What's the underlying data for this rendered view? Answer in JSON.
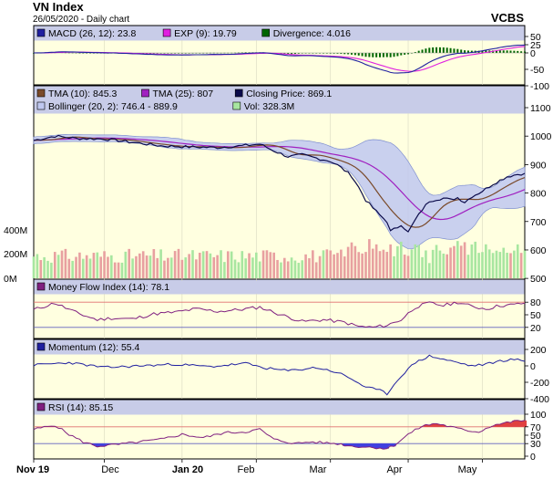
{
  "header": {
    "title": "VN Index",
    "subtitle": "26/05/2020 - Daily chart",
    "source": "VCBS"
  },
  "colors": {
    "panel_bg": "#ffffe0",
    "legend_bg": "#c8cce8",
    "band_fill": "#c0c8f0",
    "macd": "#2020a0",
    "exp": "#e020e0",
    "divergence": "#006600",
    "tma10": "#7a4a2a",
    "tma25": "#a020c0",
    "close": "#0a0a4a",
    "vol_up": "#a8e6a0",
    "vol_down": "#e8a0a0",
    "mfi": "#802080",
    "momentum": "#2020a0",
    "rsi_line": "#802080",
    "rsi_over": "#e04040",
    "rsi_under": "#4040e0",
    "ref_line": "#e07070"
  },
  "panels": {
    "macd": {
      "legend": [
        {
          "label": "MACD (26, 12): 23.8",
          "color": "#2020a0"
        },
        {
          "label": "EXP (9): 19.79",
          "color": "#e020e0"
        },
        {
          "label": "Divergence: 4.016",
          "color": "#006600"
        }
      ],
      "ticks": [
        "50",
        "25",
        "0",
        "-50",
        "-100"
      ]
    },
    "price": {
      "legend_row1": [
        {
          "label": "TMA (10): 845.3",
          "color": "#7a4a2a"
        },
        {
          "label": "TMA (25): 807",
          "color": "#a020c0"
        },
        {
          "label": "Closing Price: 869.1",
          "color": "#0a0a4a"
        }
      ],
      "legend_row2": [
        {
          "label": "Bollinger (20, 2): 746.4 - 889.9",
          "color": "#c0c8f0"
        },
        {
          "label": "Vol: 328.3M",
          "color": "#a8e6a0"
        }
      ],
      "ticks": [
        "1100",
        "1000",
        "900",
        "800",
        "700",
        "600",
        "500"
      ],
      "volume_ticks": [
        "400M",
        "200M",
        "0M"
      ]
    },
    "mfi": {
      "legend": [
        {
          "label": "Money Flow Index (14): 78.1",
          "color": "#802080"
        }
      ],
      "ticks": [
        "80",
        "50",
        "20"
      ]
    },
    "momentum": {
      "legend": [
        {
          "label": "Momentum (12): 55.4",
          "color": "#2020a0"
        }
      ],
      "ticks": [
        "200",
        "0",
        "-200",
        "-400"
      ]
    },
    "rsi": {
      "legend": [
        {
          "label": "RSI (14): 85.15",
          "color": "#802080"
        }
      ],
      "ticks": [
        "100",
        "70",
        "50",
        "30",
        "0"
      ]
    }
  },
  "chart_data": {
    "type": "line",
    "title": "VN Index",
    "x_labels": [
      "Nov 19",
      "Dec",
      "Jan 20",
      "Feb",
      "Mar",
      "Apr",
      "May"
    ],
    "n_sessions": 140,
    "price_range": [
      500,
      1100
    ],
    "close_keypoints": [
      [
        0,
        985
      ],
      [
        6,
        1000
      ],
      [
        12,
        992
      ],
      [
        20,
        990
      ],
      [
        28,
        978
      ],
      [
        36,
        966
      ],
      [
        44,
        962
      ],
      [
        52,
        960
      ],
      [
        58,
        965
      ],
      [
        64,
        972
      ],
      [
        68,
        948
      ],
      [
        72,
        928
      ],
      [
        76,
        934
      ],
      [
        80,
        923
      ],
      [
        84,
        912
      ],
      [
        86,
        898
      ],
      [
        88,
        880
      ],
      [
        90,
        860
      ],
      [
        92,
        820
      ],
      [
        94,
        775
      ],
      [
        96,
        748
      ],
      [
        98,
        722
      ],
      [
        100,
        700
      ],
      [
        101,
        665
      ],
      [
        103,
        680
      ],
      [
        104,
        690
      ],
      [
        106,
        662
      ],
      [
        108,
        705
      ],
      [
        110,
        742
      ],
      [
        112,
        772
      ],
      [
        114,
        778
      ],
      [
        116,
        782
      ],
      [
        118,
        776
      ],
      [
        120,
        784
      ],
      [
        122,
        768
      ],
      [
        124,
        788
      ],
      [
        126,
        800
      ],
      [
        128,
        815
      ],
      [
        130,
        832
      ],
      [
        132,
        845
      ],
      [
        134,
        858
      ],
      [
        137,
        866
      ],
      [
        139,
        869.1
      ]
    ],
    "last_values": {
      "close": 869.1,
      "tma10": 845.3,
      "tma25": 807,
      "bollinger_lower": 746.4,
      "bollinger_upper": 889.9,
      "volume_m": 328.3,
      "macd": 23.8,
      "exp": 19.79,
      "divergence": 4.016,
      "mfi": 78.1,
      "momentum": 55.4,
      "rsi": 85.15
    },
    "mfi_keypoints": [
      [
        0,
        62
      ],
      [
        6,
        78
      ],
      [
        12,
        55
      ],
      [
        18,
        38
      ],
      [
        22,
        42
      ],
      [
        28,
        40
      ],
      [
        34,
        52
      ],
      [
        40,
        56
      ],
      [
        46,
        64
      ],
      [
        52,
        58
      ],
      [
        58,
        62
      ],
      [
        64,
        68
      ],
      [
        70,
        50
      ],
      [
        76,
        34
      ],
      [
        82,
        38
      ],
      [
        88,
        32
      ],
      [
        92,
        22
      ],
      [
        96,
        20
      ],
      [
        100,
        25
      ],
      [
        104,
        38
      ],
      [
        108,
        68
      ],
      [
        112,
        78
      ],
      [
        116,
        72
      ],
      [
        120,
        80
      ],
      [
        124,
        70
      ],
      [
        128,
        64
      ],
      [
        132,
        72
      ],
      [
        136,
        74
      ],
      [
        139,
        78.1
      ]
    ],
    "momentum_keypoints": [
      [
        0,
        10
      ],
      [
        10,
        40
      ],
      [
        20,
        -20
      ],
      [
        30,
        0
      ],
      [
        40,
        20
      ],
      [
        50,
        -10
      ],
      [
        60,
        30
      ],
      [
        66,
        -30
      ],
      [
        72,
        -60
      ],
      [
        80,
        -20
      ],
      [
        86,
        -80
      ],
      [
        90,
        -160
      ],
      [
        94,
        -260
      ],
      [
        98,
        -300
      ],
      [
        100,
        -340
      ],
      [
        104,
        -120
      ],
      [
        108,
        40
      ],
      [
        112,
        120
      ],
      [
        116,
        80
      ],
      [
        120,
        40
      ],
      [
        124,
        0
      ],
      [
        128,
        20
      ],
      [
        132,
        60
      ],
      [
        136,
        80
      ],
      [
        139,
        55.4
      ]
    ],
    "rsi_keypoints": [
      [
        0,
        64
      ],
      [
        6,
        74
      ],
      [
        10,
        52
      ],
      [
        14,
        34
      ],
      [
        18,
        24
      ],
      [
        24,
        28
      ],
      [
        30,
        34
      ],
      [
        36,
        40
      ],
      [
        42,
        52
      ],
      [
        48,
        44
      ],
      [
        54,
        56
      ],
      [
        60,
        58
      ],
      [
        64,
        64
      ],
      [
        68,
        40
      ],
      [
        74,
        30
      ],
      [
        78,
        34
      ],
      [
        82,
        32
      ],
      [
        86,
        30
      ],
      [
        90,
        24
      ],
      [
        94,
        22
      ],
      [
        98,
        20
      ],
      [
        100,
        18
      ],
      [
        102,
        26
      ],
      [
        106,
        52
      ],
      [
        110,
        72
      ],
      [
        114,
        78
      ],
      [
        118,
        70
      ],
      [
        122,
        62
      ],
      [
        126,
        58
      ],
      [
        130,
        74
      ],
      [
        134,
        80
      ],
      [
        137,
        84
      ],
      [
        139,
        85.15
      ]
    ],
    "volume_range_m": [
      0,
      600
    ]
  }
}
